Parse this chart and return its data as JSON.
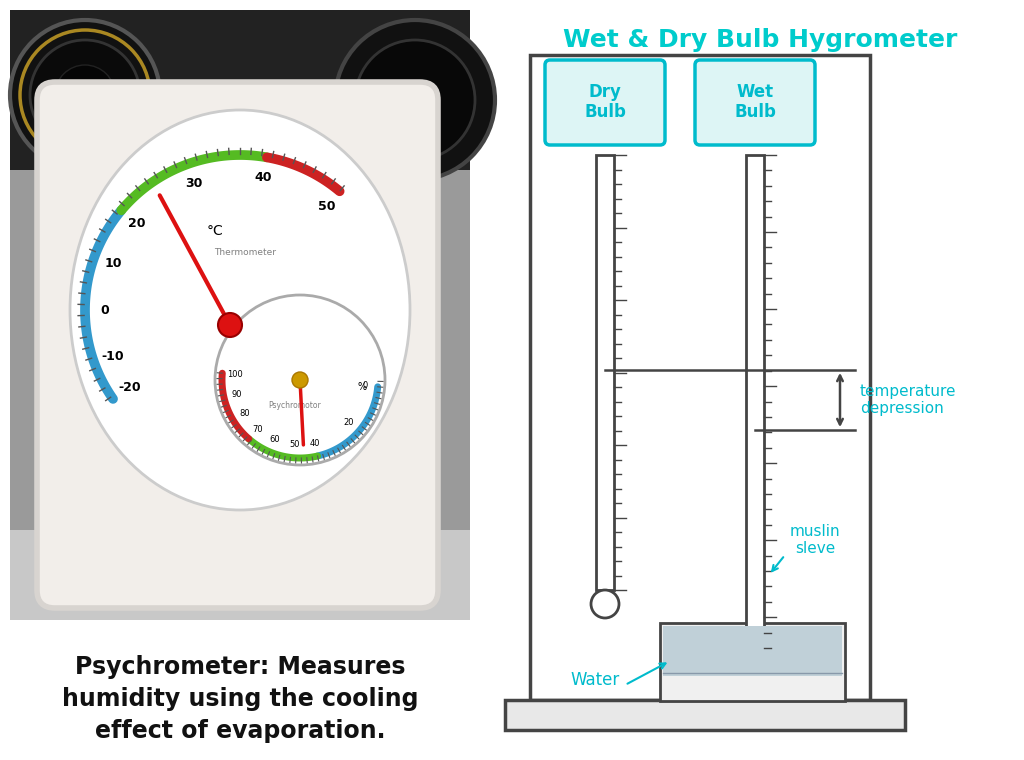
{
  "title": "Wet & Dry Bulb Hygrometer",
  "title_color": "#00CCCC",
  "caption_line1": "Psychrometer: Measures",
  "caption_line2": "humidity using the cooling",
  "caption_line3": "effect of evaporation.",
  "caption_color": "#111111",
  "dry_bulb_label": "Dry\nBulb",
  "wet_bulb_label": "Wet\nBulb",
  "temp_depression_label": "temperature\ndepression",
  "muslin_label": "muslin\nsleve",
  "water_label": "Water",
  "cyan_color": "#00BBCC",
  "diagram_line_color": "#444444",
  "bg_color": "#ffffff",
  "photo_bg_top": "#888888",
  "photo_bg_bottom": "#cccccc",
  "device_color": "#f5f0eb",
  "device_edge": "#d0cac0",
  "dial_bg": "#ffffff",
  "blue_arc": "#3399cc",
  "green_arc": "#55bb22",
  "red_arc": "#cc2222",
  "needle_color": "#dd1111",
  "label_size": 14,
  "caption_size": 17
}
